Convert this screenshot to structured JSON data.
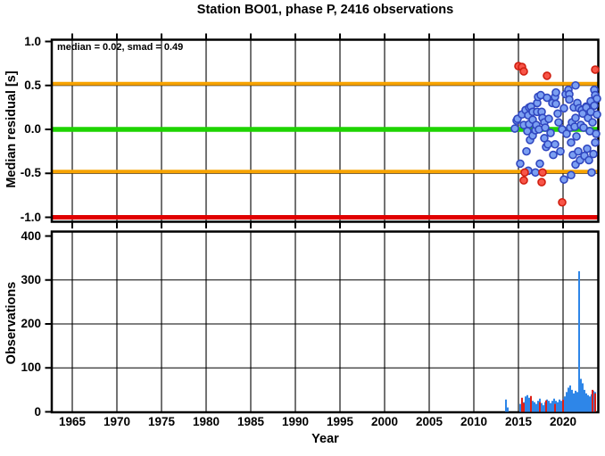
{
  "title": "Station BO01, phase P, 2416 observations",
  "colors": {
    "scatter_fill": "#7b9ff2",
    "scatter_edge": "#3047c0",
    "outlier_fill": "#f85548",
    "outlier_edge": "#d01f10",
    "bar_blue": "#2e86e8",
    "bar_red": "#e02015",
    "line_green": "#1ed400",
    "line_orange": "#f7a300",
    "line_red": "#e00000",
    "frame": "#000000"
  },
  "chart_data": [
    {
      "type": "scatter",
      "title": "Station BO01, phase P, 2416 observations",
      "annotation": "median = 0.02, smad = 0.49",
      "median": 0.02,
      "smad": 0.49,
      "ylabel": "Median residual [s]",
      "ylim": [
        -1.0,
        1.0
      ],
      "ytick_values": [
        1.0,
        0.5,
        0.0,
        -0.5,
        -1.0
      ],
      "ytick_labels": [
        "1.0",
        "0.5",
        "0.0",
        "-0.5",
        "-1.0"
      ],
      "xlim": [
        1962.6,
        2024.2
      ],
      "xtick_values": [
        1965,
        1970,
        1975,
        1980,
        1985,
        1990,
        1995,
        2000,
        2005,
        2010,
        2015,
        2020
      ],
      "xtick_labels": [
        "1965",
        "1970",
        "1975",
        "1980",
        "1985",
        "1990",
        "1995",
        "2000",
        "2005",
        "2010",
        "2015",
        "2020"
      ],
      "grid": true,
      "reference_lines": [
        {
          "y": 0.5,
          "color": "#f7a300"
        },
        {
          "y": 0.0,
          "color": "#1ed400"
        },
        {
          "y": -0.5,
          "color": "#f7a300"
        },
        {
          "y": -1.0,
          "color": "#e00000"
        }
      ],
      "blue_points": [
        [
          2014.6,
          0.01
        ],
        [
          2014.8,
          0.1
        ],
        [
          2014.9,
          0.12
        ],
        [
          2015.2,
          -0.39
        ],
        [
          2015.4,
          0.17
        ],
        [
          2015.6,
          0.05
        ],
        [
          2015.8,
          0.22
        ],
        [
          2015.9,
          -0.25
        ],
        [
          2016.0,
          -0.02
        ],
        [
          2016.1,
          0.16
        ],
        [
          2016.1,
          -0.47
        ],
        [
          2016.2,
          0.25
        ],
        [
          2016.2,
          0.06
        ],
        [
          2016.3,
          -0.12
        ],
        [
          2016.4,
          0.26
        ],
        [
          2016.6,
          0.2
        ],
        [
          2016.6,
          0.11
        ],
        [
          2016.6,
          -0.07
        ],
        [
          2016.9,
          -0.01
        ],
        [
          2016.9,
          -0.49
        ],
        [
          2017.0,
          0.05
        ],
        [
          2017.1,
          0.3
        ],
        [
          2017.1,
          0.2
        ],
        [
          2017.2,
          0.37
        ],
        [
          2017.3,
          0.0
        ],
        [
          2017.4,
          -0.39
        ],
        [
          2017.5,
          0.39
        ],
        [
          2017.6,
          0.2
        ],
        [
          2017.7,
          0.13
        ],
        [
          2017.9,
          0.08
        ],
        [
          2017.9,
          -0.1
        ],
        [
          2018.0,
          0.02
        ],
        [
          2018.1,
          -0.2
        ],
        [
          2018.2,
          0.36
        ],
        [
          2018.3,
          -0.17
        ],
        [
          2018.4,
          0.12
        ],
        [
          2018.6,
          -0.04
        ],
        [
          2018.8,
          0.3
        ],
        [
          2018.9,
          -0.29
        ],
        [
          2019.1,
          0.37
        ],
        [
          2019.1,
          -0.17
        ],
        [
          2019.2,
          0.42
        ],
        [
          2019.2,
          0.29
        ],
        [
          2019.4,
          0.18
        ],
        [
          2019.5,
          0.08
        ],
        [
          2019.7,
          -0.25
        ],
        [
          2019.9,
          0.0
        ],
        [
          2020.1,
          0.24
        ],
        [
          2020.1,
          -0.57
        ],
        [
          2020.3,
          0.4
        ],
        [
          2020.4,
          -0.05
        ],
        [
          2020.6,
          0.45
        ],
        [
          2020.7,
          0.4
        ],
        [
          2020.7,
          0.34
        ],
        [
          2020.8,
          0.02
        ],
        [
          2020.9,
          -0.15
        ],
        [
          2020.9,
          -0.52
        ],
        [
          2021.0,
          0.08
        ],
        [
          2021.1,
          -0.29
        ],
        [
          2021.2,
          0.25
        ],
        [
          2021.3,
          0.03
        ],
        [
          2021.4,
          0.5
        ],
        [
          2021.4,
          0.13
        ],
        [
          2021.4,
          -0.4
        ],
        [
          2021.5,
          -0.08
        ],
        [
          2021.6,
          0.3
        ],
        [
          2021.7,
          -0.25
        ],
        [
          2021.8,
          0.24
        ],
        [
          2021.9,
          -0.35
        ],
        [
          2022.0,
          0.05
        ],
        [
          2022.1,
          0.22
        ],
        [
          2022.2,
          0.18
        ],
        [
          2022.3,
          0.02
        ],
        [
          2022.4,
          -0.3
        ],
        [
          2022.6,
          0.26
        ],
        [
          2022.6,
          0.25
        ],
        [
          2022.7,
          -0.22
        ],
        [
          2022.8,
          0.13
        ],
        [
          2022.9,
          -0.35
        ],
        [
          2023.0,
          -0.02
        ],
        [
          2023.1,
          0.2
        ],
        [
          2023.1,
          0.32
        ],
        [
          2023.2,
          -0.49
        ],
        [
          2023.3,
          0.08
        ],
        [
          2023.4,
          -0.28
        ],
        [
          2023.5,
          0.45
        ],
        [
          2023.5,
          0.27
        ],
        [
          2023.6,
          0.39
        ],
        [
          2023.6,
          -0.15
        ],
        [
          2023.7,
          -0.05
        ],
        [
          2023.8,
          0.35
        ],
        [
          2023.8,
          0.17
        ]
      ],
      "red_points": [
        [
          2015.0,
          0.72
        ],
        [
          2015.4,
          0.71
        ],
        [
          2015.6,
          0.66
        ],
        [
          2018.2,
          0.61
        ],
        [
          2023.6,
          0.68
        ],
        [
          2015.6,
          -0.58
        ],
        [
          2015.7,
          -0.49
        ],
        [
          2017.6,
          -0.6
        ],
        [
          2017.7,
          -0.49
        ],
        [
          2019.9,
          -0.83
        ]
      ]
    },
    {
      "type": "bar",
      "ylabel": "Observations",
      "xlabel": "Year",
      "ylim": [
        0,
        400
      ],
      "ytick_values": [
        400,
        300,
        200,
        100,
        0
      ],
      "ytick_labels": [
        "400",
        "300",
        "200",
        "100",
        "0"
      ],
      "bin_width_years": 0.2,
      "grid": true,
      "blue_bars": [
        [
          2013.5,
          28
        ],
        [
          2013.7,
          10
        ],
        [
          2015.1,
          18
        ],
        [
          2015.3,
          30
        ],
        [
          2015.5,
          22
        ],
        [
          2015.7,
          35
        ],
        [
          2015.9,
          38
        ],
        [
          2016.1,
          32
        ],
        [
          2016.3,
          28
        ],
        [
          2016.5,
          25
        ],
        [
          2016.7,
          22
        ],
        [
          2016.9,
          18
        ],
        [
          2017.1,
          25
        ],
        [
          2017.3,
          30
        ],
        [
          2017.5,
          20
        ],
        [
          2017.7,
          15
        ],
        [
          2017.9,
          22
        ],
        [
          2018.1,
          28
        ],
        [
          2018.3,
          25
        ],
        [
          2018.5,
          20
        ],
        [
          2018.7,
          25
        ],
        [
          2018.9,
          30
        ],
        [
          2019.1,
          25
        ],
        [
          2019.3,
          22
        ],
        [
          2019.5,
          28
        ],
        [
          2019.7,
          25
        ],
        [
          2019.9,
          30
        ],
        [
          2020.1,
          35
        ],
        [
          2020.3,
          45
        ],
        [
          2020.5,
          55
        ],
        [
          2020.7,
          60
        ],
        [
          2020.9,
          50
        ],
        [
          2021.1,
          42
        ],
        [
          2021.3,
          48
        ],
        [
          2021.5,
          45
        ],
        [
          2021.7,
          320
        ],
        [
          2021.9,
          75
        ],
        [
          2022.1,
          65
        ],
        [
          2022.3,
          50
        ],
        [
          2022.5,
          42
        ],
        [
          2022.7,
          38
        ],
        [
          2022.9,
          35
        ],
        [
          2023.1,
          40
        ],
        [
          2023.3,
          48
        ],
        [
          2023.5,
          45
        ]
      ],
      "red_bars": [
        [
          2015.3,
          32
        ],
        [
          2015.5,
          20
        ],
        [
          2016.3,
          36
        ],
        [
          2017.3,
          22
        ],
        [
          2018.0,
          26
        ],
        [
          2019.0,
          18
        ],
        [
          2019.9,
          28
        ],
        [
          2023.2,
          50
        ],
        [
          2023.5,
          42
        ]
      ]
    }
  ]
}
